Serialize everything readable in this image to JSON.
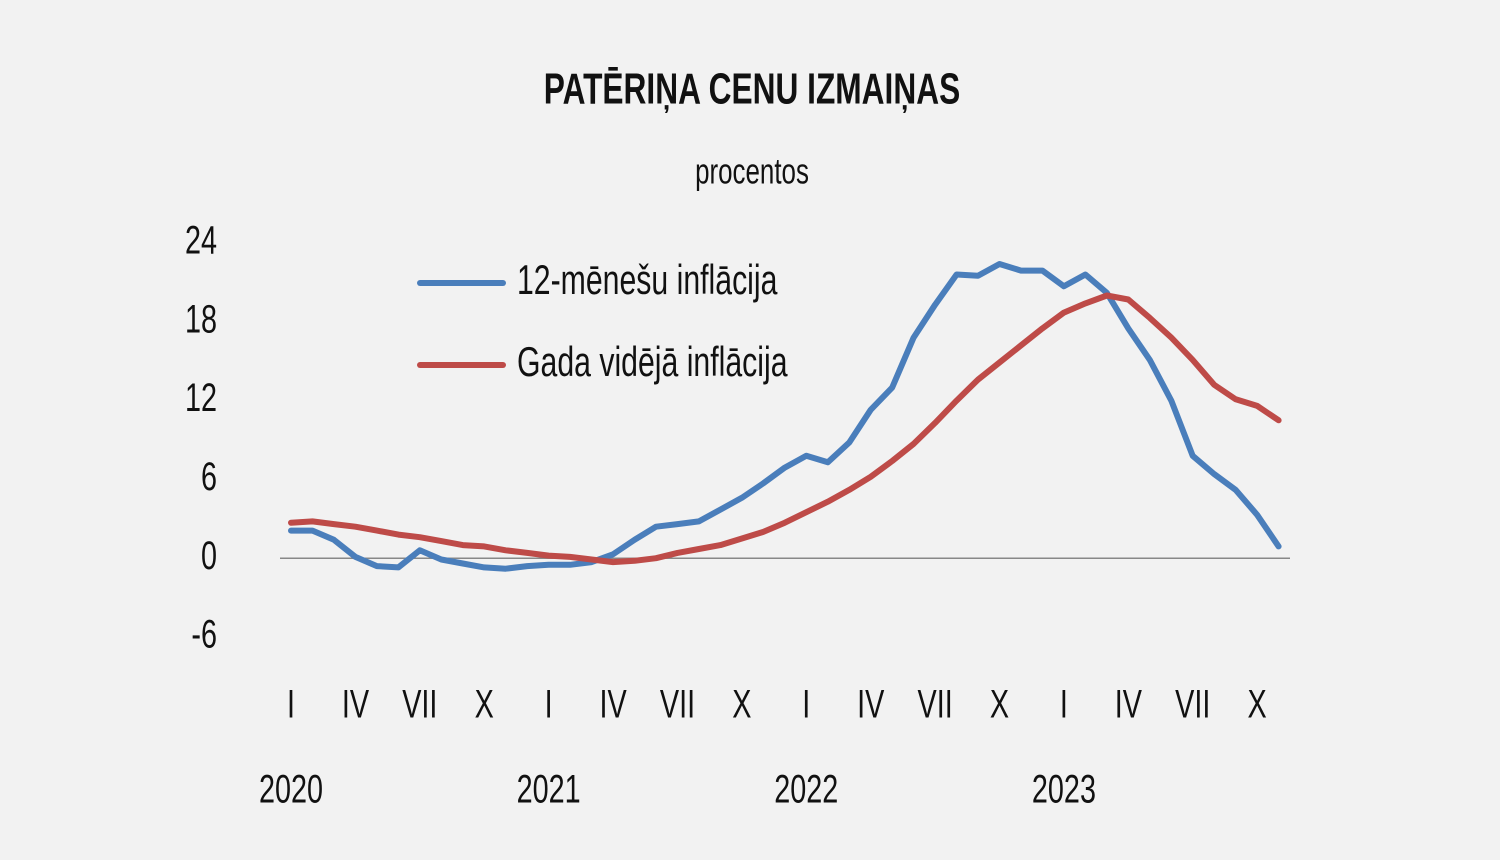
{
  "chart_data": {
    "type": "line",
    "title": "PATĒRIŅA CENU IZMAIŅAS",
    "subtitle": "procentos",
    "categories": [
      "I",
      null,
      null,
      "IV",
      null,
      null,
      "VII",
      null,
      null,
      "X",
      null,
      null,
      "I",
      null,
      null,
      "IV",
      null,
      null,
      "VII",
      null,
      null,
      "X",
      null,
      null,
      "I",
      null,
      null,
      "IV",
      null,
      null,
      "VII",
      null,
      null,
      "X",
      null,
      null,
      "I",
      null,
      null,
      "IV",
      null,
      null,
      "VII",
      null,
      null,
      "X",
      null
    ],
    "years": [
      "2020",
      "2021",
      "2022",
      "2023"
    ],
    "series": [
      {
        "name": "12-mēnešu inflācija",
        "color": "#4a7ebb",
        "values": [
          2.1,
          2.1,
          1.4,
          0.1,
          -0.6,
          -0.7,
          0.6,
          -0.1,
          -0.4,
          -0.7,
          -0.8,
          -0.6,
          -0.5,
          -0.5,
          -0.3,
          0.3,
          1.4,
          2.4,
          2.6,
          2.8,
          3.7,
          4.6,
          5.7,
          6.9,
          7.8,
          7.3,
          8.8,
          11.3,
          13.0,
          16.8,
          19.3,
          21.6,
          21.5,
          22.4,
          21.9,
          21.9,
          20.7,
          21.6,
          20.2,
          17.5,
          15.1,
          12.0,
          7.8,
          6.4,
          5.2,
          3.3,
          0.9
        ]
      },
      {
        "name": "Gada vidējā inflācija",
        "color": "#be4b48",
        "values": [
          2.7,
          2.8,
          2.6,
          2.4,
          2.1,
          1.8,
          1.6,
          1.3,
          1.0,
          0.9,
          0.6,
          0.4,
          0.2,
          0.1,
          -0.1,
          -0.3,
          -0.2,
          0.0,
          0.4,
          0.7,
          1.0,
          1.5,
          2.0,
          2.7,
          3.5,
          4.3,
          5.2,
          6.2,
          7.4,
          8.7,
          10.3,
          12.0,
          13.6,
          14.9,
          16.2,
          17.5,
          18.7,
          19.4,
          20.0,
          19.7,
          18.3,
          16.8,
          15.1,
          13.2,
          12.1,
          11.6,
          10.5
        ]
      }
    ],
    "ylim": [
      -6,
      24
    ],
    "yticks": [
      -6,
      0,
      6,
      12,
      18,
      24
    ],
    "grid": false,
    "legend": "top-left"
  }
}
